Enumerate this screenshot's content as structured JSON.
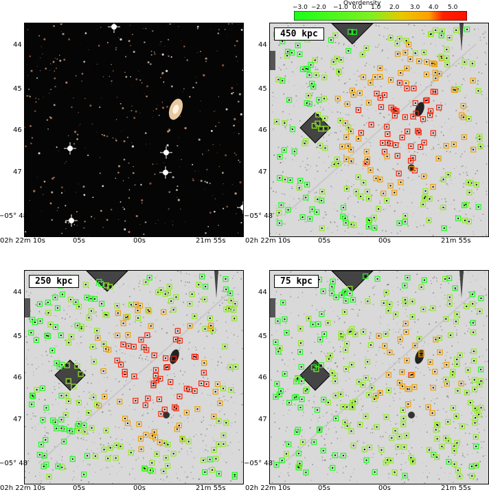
{
  "colorbar": {
    "title": "Overdensity",
    "ticks": [
      "−3.0",
      "−2.0",
      "−1.0",
      "0.0",
      "1.0",
      "2.0",
      "3.0",
      "4.0",
      "5.0"
    ],
    "colors": [
      "#19ff19",
      "#8cf01e",
      "#ffb400",
      "#ff1e00"
    ]
  },
  "axes": {
    "x_ticks": [
      "02h 22m 10s",
      "05s",
      "00s",
      "21m 55s"
    ],
    "y_ticks": [
      "44",
      "45",
      "46",
      "47",
      "−05° 48′"
    ]
  },
  "panels": [
    {
      "id": "color-image",
      "label": ""
    },
    {
      "id": "overdensity-450",
      "label": "450 kpc"
    },
    {
      "id": "overdensity-250",
      "label": "250 kpc"
    },
    {
      "id": "overdensity-75",
      "label": "75 kpc"
    }
  ],
  "x_tick_labels": {
    "t1": "02",
    "t1s": "h",
    "t2": " 22",
    "t2s": "m",
    "t3": " 10",
    "t3s": "s",
    "t4": "05",
    "t4s": "s",
    "t5": "00",
    "t5s": "s",
    "t6": "21",
    "t6s": "m",
    "t7": " 55",
    "t7s": "s"
  },
  "y_tick_labels": {
    "y1": "44",
    "y2": "45",
    "y3": "46",
    "y4": "47",
    "y5a": "−05",
    "y5b": "o",
    "y5c": " 48′"
  }
}
